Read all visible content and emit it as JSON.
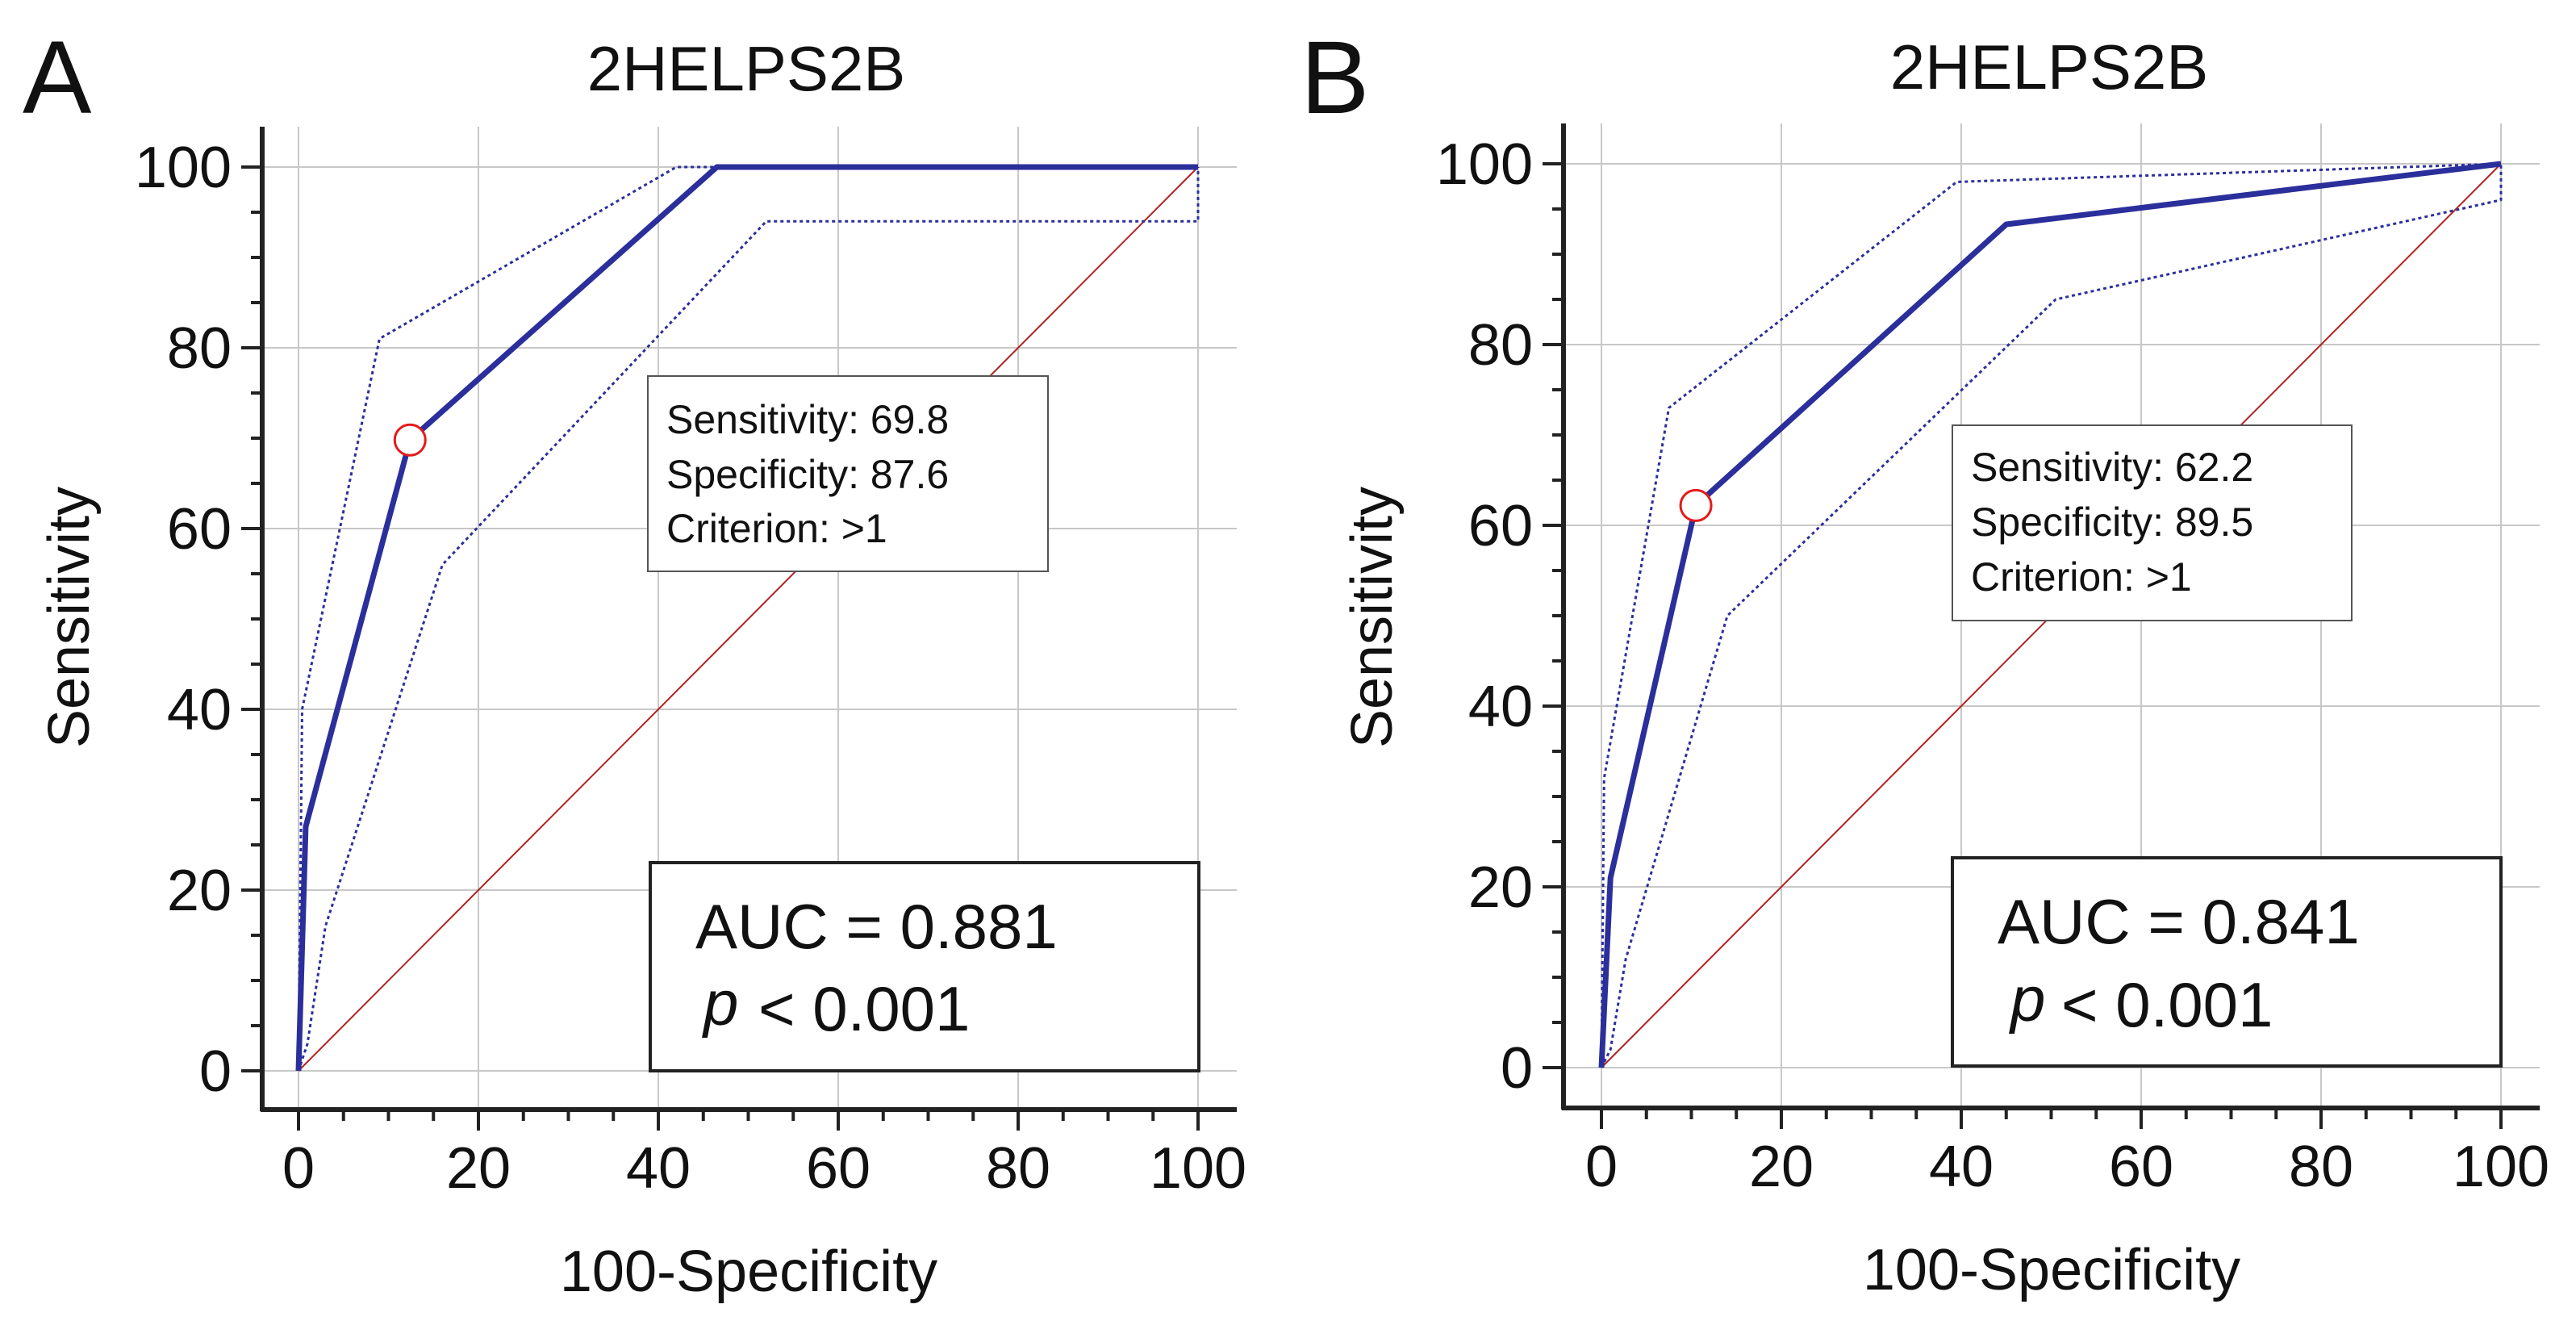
{
  "chart_data": [
    {
      "type": "line",
      "panel_label": "A",
      "title": "2HELPS2B",
      "xlabel": "100-Specificity",
      "ylabel": "Sensitivity",
      "xlim": [
        0,
        100
      ],
      "ylim": [
        0,
        100
      ],
      "xticks": [
        "0",
        "20",
        "40",
        "60",
        "80",
        "100"
      ],
      "yticks": [
        "0",
        "20",
        "40",
        "60",
        "80",
        "100"
      ],
      "grid": true,
      "series": [
        {
          "name": "ROC curve",
          "style": "solid",
          "color": "#2b2f9b",
          "x": [
            0,
            0.8,
            12.4,
            46.5,
            100
          ],
          "y": [
            0,
            27,
            69.8,
            100,
            100
          ]
        },
        {
          "name": "Upper 95% CI",
          "style": "dotted",
          "color": "#2b2f9b",
          "x": [
            0,
            0.4,
            9,
            42,
            100
          ],
          "y": [
            0,
            40,
            81,
            100,
            100
          ]
        },
        {
          "name": "Lower 95% CI",
          "style": "dotted",
          "color": "#2b2f9b",
          "x": [
            0,
            1,
            3,
            16,
            52,
            100,
            100
          ],
          "y": [
            0,
            3,
            16,
            56,
            94,
            94,
            100
          ]
        },
        {
          "name": "Reference line",
          "style": "solid",
          "color": "#b22222",
          "x": [
            0,
            100
          ],
          "y": [
            0,
            100
          ]
        }
      ],
      "optimal_point": {
        "x": 12.4,
        "y": 69.8,
        "color": "#e41a1c"
      },
      "info_box": {
        "sensitivity": "Sensitivity: 69.8",
        "specificity": "Specificity: 87.6",
        "criterion": "Criterion: >1"
      },
      "stats_box": {
        "auc": "AUC = 0.881",
        "p_symbol": "p",
        "p_value": "< 0.001"
      }
    },
    {
      "type": "line",
      "panel_label": "B",
      "title": "2HELPS2B",
      "xlabel": "100-Specificity",
      "ylabel": "Sensitivity",
      "xlim": [
        0,
        100
      ],
      "ylim": [
        0,
        100
      ],
      "xticks": [
        "0",
        "20",
        "40",
        "60",
        "80",
        "100"
      ],
      "yticks": [
        "0",
        "20",
        "40",
        "60",
        "80",
        "100"
      ],
      "grid": true,
      "series": [
        {
          "name": "ROC curve",
          "style": "solid",
          "color": "#2b2f9b",
          "x": [
            0,
            1,
            10.5,
            45,
            100
          ],
          "y": [
            0,
            21,
            62.2,
            93.3,
            100
          ]
        },
        {
          "name": "Upper 95% CI",
          "style": "dotted",
          "color": "#2b2f9b",
          "x": [
            0,
            0.3,
            7.5,
            39.5,
            100
          ],
          "y": [
            0,
            32,
            73,
            98,
            100
          ]
        },
        {
          "name": "Lower 95% CI",
          "style": "dotted",
          "color": "#2b2f9b",
          "x": [
            0,
            1,
            2.7,
            14,
            50.5,
            100,
            100
          ],
          "y": [
            0,
            2,
            12,
            50,
            85,
            96,
            100
          ]
        },
        {
          "name": "Reference line",
          "style": "solid",
          "color": "#b22222",
          "x": [
            0,
            100
          ],
          "y": [
            0,
            100
          ]
        }
      ],
      "optimal_point": {
        "x": 10.5,
        "y": 62.2,
        "color": "#e41a1c"
      },
      "info_box": {
        "sensitivity": "Sensitivity: 62.2",
        "specificity": "Specificity: 89.5",
        "criterion": "Criterion: >1"
      },
      "stats_box": {
        "auc": "AUC = 0.841",
        "p_symbol": "p",
        "p_value": "< 0.001"
      }
    }
  ]
}
